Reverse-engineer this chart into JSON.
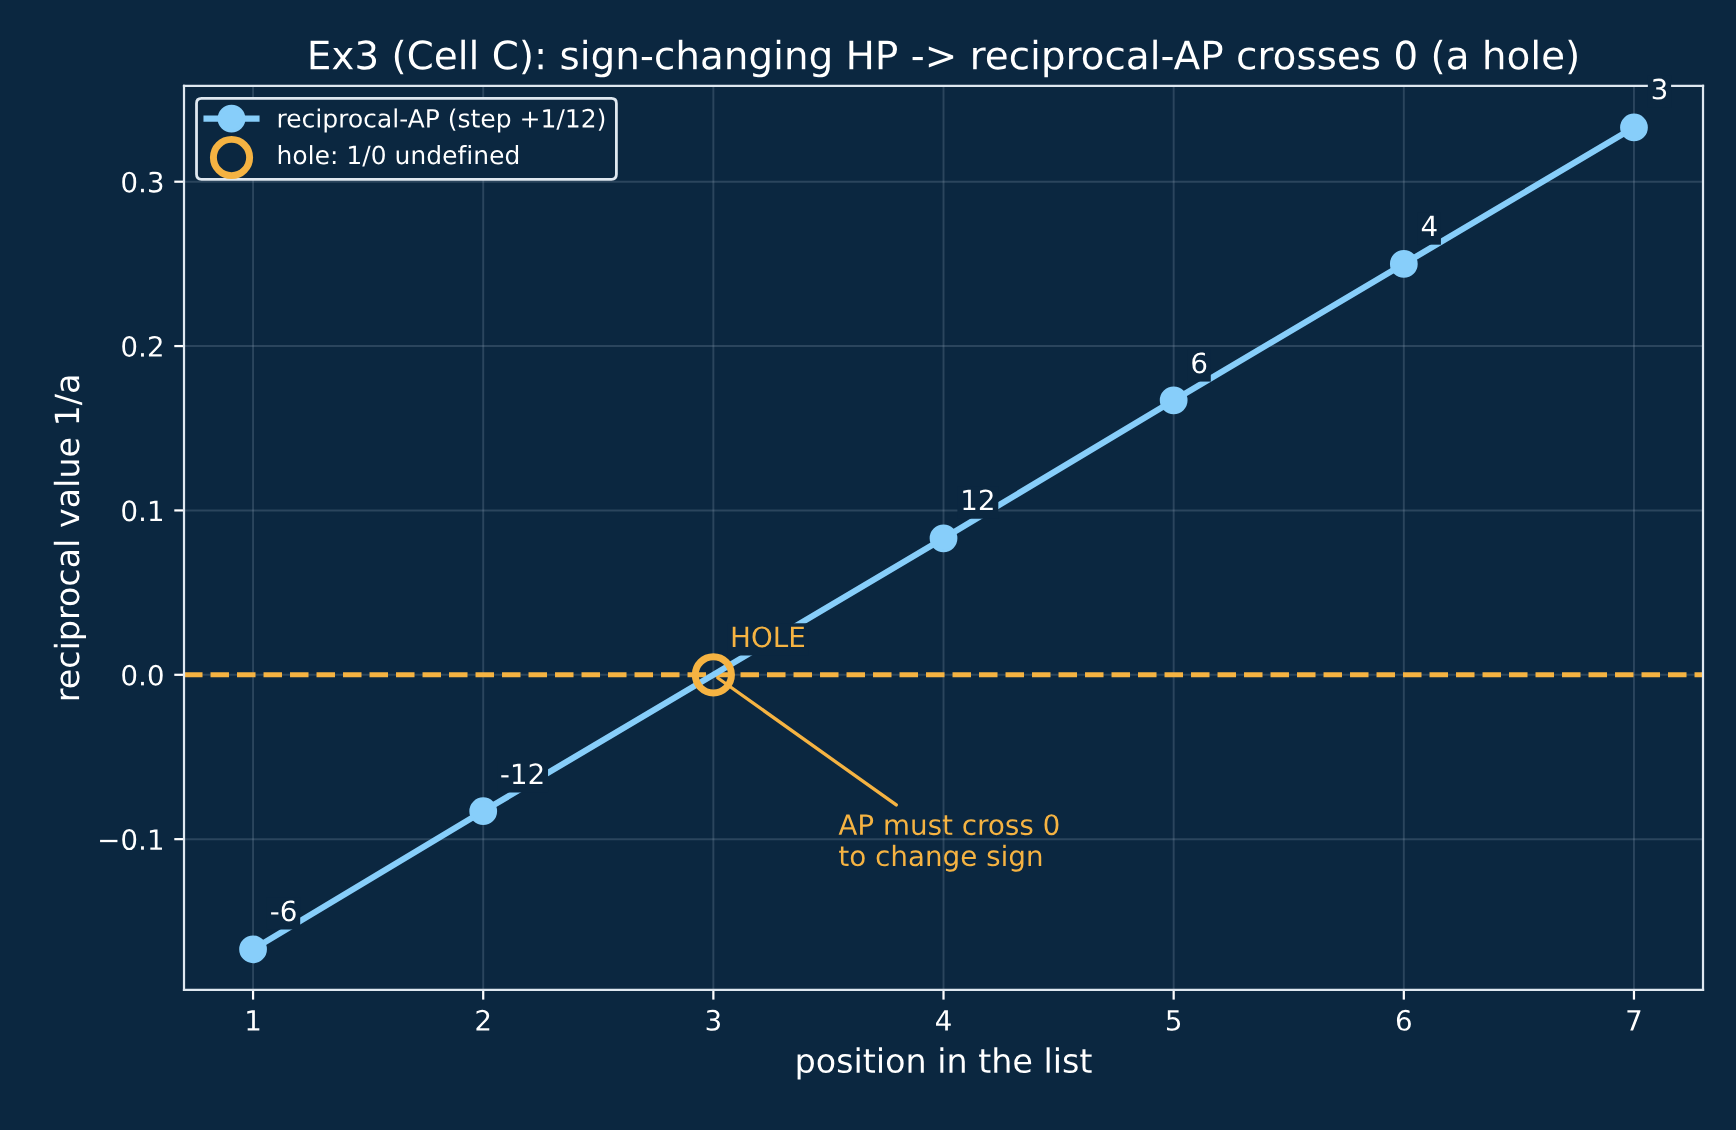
{
  "chart_data": {
    "type": "line",
    "title": "Ex3 (Cell C): sign-changing HP -> reciprocal-AP crosses 0 (a hole)",
    "xlabel": "position in the list",
    "ylabel": "reciprocal value 1/a",
    "series": [
      {
        "name": "reciprocal-AP (step +1/12)",
        "color": "#87cefa",
        "marker": "circle",
        "x": [
          1,
          2,
          4,
          5,
          6,
          7
        ],
        "values": [
          -0.167,
          -0.083,
          0.083,
          0.167,
          0.25,
          0.333
        ]
      },
      {
        "name": "hole: 1/0 undefined",
        "color": "#f5b342",
        "type": "scatter",
        "marker": "circle",
        "x": [
          3
        ],
        "values": [
          0
        ]
      }
    ],
    "ref_lines": [
      {
        "axis": "y",
        "value": 0,
        "color": "#f5b342",
        "line_style": "dashed"
      }
    ],
    "annotations": [
      {
        "text": "-6",
        "x": 1,
        "y": -0.1667
      },
      {
        "text": "-12",
        "x": 2,
        "y": -0.0833
      },
      {
        "text": "12",
        "x": 4,
        "y": 0.0833
      },
      {
        "text": "6",
        "x": 5,
        "y": 0.1667
      },
      {
        "text": "4",
        "x": 6,
        "y": 0.25
      },
      {
        "text": "3",
        "x": 7,
        "y": 0.3333
      },
      {
        "text": "HOLE",
        "x": 3,
        "y": 0
      },
      {
        "text": "AP must cross 0\nto change sign",
        "x": 3,
        "y": 0
      }
    ],
    "xlim": [
      0.7,
      7.3
    ],
    "ylim": [
      -0.1917,
      0.3583
    ],
    "xticks": [
      1,
      2,
      3,
      4,
      5,
      6,
      7
    ],
    "yticks": [
      -0.1,
      {
        "value": 0,
        "label": "0.0"
      },
      0.1,
      0.2,
      0.3
    ],
    "grid": true,
    "legend": "top left"
  }
}
